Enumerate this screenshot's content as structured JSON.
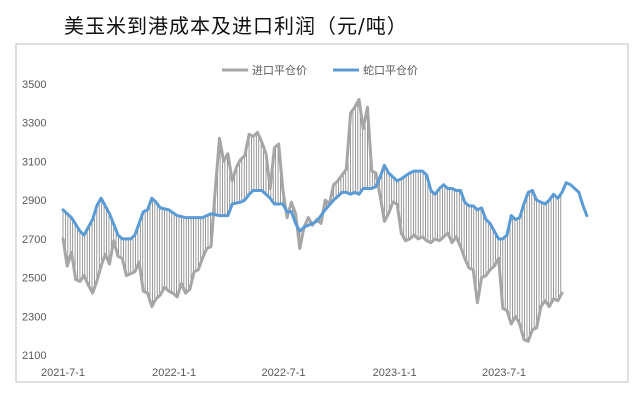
{
  "chart_data": {
    "type": "line",
    "title": "美玉米到港成本及进口利润（元/吨）",
    "xlabel": "",
    "ylabel": "",
    "ylim": [
      2100,
      3500
    ],
    "y_ticks": [
      2100,
      2300,
      2500,
      2700,
      2900,
      3100,
      3300,
      3500
    ],
    "x_tick_labels": [
      "2021-7-1",
      "2022-1-1",
      "2022-7-1",
      "2023-1-1",
      "2023-7-1"
    ],
    "x_range": [
      "2021-07-01",
      "2023-11-15"
    ],
    "legend_position": "top",
    "grid": false,
    "fill_between": "vertical hatch lines between the two series",
    "series": [
      {
        "name": "进口平仓价",
        "color": "#A6A6A6",
        "points": [
          [
            "2021-07-01",
            2700
          ],
          [
            "2021-07-08",
            2560
          ],
          [
            "2021-07-15",
            2630
          ],
          [
            "2021-07-22",
            2490
          ],
          [
            "2021-07-29",
            2480
          ],
          [
            "2021-08-05",
            2510
          ],
          [
            "2021-08-12",
            2460
          ],
          [
            "2021-08-19",
            2420
          ],
          [
            "2021-08-26",
            2480
          ],
          [
            "2021-09-02",
            2560
          ],
          [
            "2021-09-09",
            2620
          ],
          [
            "2021-09-16",
            2570
          ],
          [
            "2021-09-23",
            2690
          ],
          [
            "2021-09-30",
            2610
          ],
          [
            "2021-10-07",
            2600
          ],
          [
            "2021-10-14",
            2510
          ],
          [
            "2021-10-21",
            2520
          ],
          [
            "2021-10-28",
            2530
          ],
          [
            "2021-11-04",
            2580
          ],
          [
            "2021-11-11",
            2430
          ],
          [
            "2021-11-18",
            2420
          ],
          [
            "2021-11-25",
            2350
          ],
          [
            "2021-12-02",
            2390
          ],
          [
            "2021-12-09",
            2410
          ],
          [
            "2021-12-16",
            2450
          ],
          [
            "2021-12-23",
            2430
          ],
          [
            "2021-12-30",
            2420
          ],
          [
            "2022-01-06",
            2400
          ],
          [
            "2022-01-13",
            2470
          ],
          [
            "2022-01-20",
            2420
          ],
          [
            "2022-01-27",
            2440
          ],
          [
            "2022-02-03",
            2530
          ],
          [
            "2022-02-10",
            2540
          ],
          [
            "2022-02-17",
            2600
          ],
          [
            "2022-02-24",
            2650
          ],
          [
            "2022-03-03",
            2660
          ],
          [
            "2022-03-10",
            2950
          ],
          [
            "2022-03-17",
            3220
          ],
          [
            "2022-03-24",
            3100
          ],
          [
            "2022-03-31",
            3140
          ],
          [
            "2022-04-07",
            3000
          ],
          [
            "2022-04-14",
            3070
          ],
          [
            "2022-04-21",
            3110
          ],
          [
            "2022-04-28",
            3130
          ],
          [
            "2022-05-05",
            3240
          ],
          [
            "2022-05-12",
            3230
          ],
          [
            "2022-05-19",
            3250
          ],
          [
            "2022-05-26",
            3200
          ],
          [
            "2022-06-02",
            3140
          ],
          [
            "2022-06-09",
            2960
          ],
          [
            "2022-06-16",
            3170
          ],
          [
            "2022-06-23",
            3190
          ],
          [
            "2022-06-30",
            2950
          ],
          [
            "2022-07-07",
            2810
          ],
          [
            "2022-07-14",
            2890
          ],
          [
            "2022-07-21",
            2830
          ],
          [
            "2022-07-28",
            2650
          ],
          [
            "2022-08-04",
            2760
          ],
          [
            "2022-08-11",
            2810
          ],
          [
            "2022-08-18",
            2770
          ],
          [
            "2022-08-25",
            2800
          ],
          [
            "2022-09-01",
            2780
          ],
          [
            "2022-09-08",
            2900
          ],
          [
            "2022-09-15",
            2880
          ],
          [
            "2022-09-22",
            2980
          ],
          [
            "2022-09-29",
            3000
          ],
          [
            "2022-10-06",
            3030
          ],
          [
            "2022-10-13",
            3060
          ],
          [
            "2022-10-20",
            3350
          ],
          [
            "2022-10-27",
            3380
          ],
          [
            "2022-11-03",
            3420
          ],
          [
            "2022-11-10",
            3270
          ],
          [
            "2022-11-17",
            3380
          ],
          [
            "2022-11-24",
            3050
          ],
          [
            "2022-12-01",
            3040
          ],
          [
            "2022-12-08",
            2920
          ],
          [
            "2022-12-15",
            2790
          ],
          [
            "2022-12-22",
            2830
          ],
          [
            "2022-12-29",
            2890
          ],
          [
            "2023-01-05",
            2880
          ],
          [
            "2023-01-12",
            2730
          ],
          [
            "2023-01-19",
            2690
          ],
          [
            "2023-01-26",
            2700
          ],
          [
            "2023-02-02",
            2720
          ],
          [
            "2023-02-09",
            2700
          ],
          [
            "2023-02-16",
            2710
          ],
          [
            "2023-02-23",
            2690
          ],
          [
            "2023-03-02",
            2680
          ],
          [
            "2023-03-09",
            2700
          ],
          [
            "2023-03-16",
            2690
          ],
          [
            "2023-03-23",
            2710
          ],
          [
            "2023-03-30",
            2730
          ],
          [
            "2023-04-06",
            2680
          ],
          [
            "2023-04-13",
            2710
          ],
          [
            "2023-04-20",
            2660
          ],
          [
            "2023-04-27",
            2600
          ],
          [
            "2023-05-04",
            2550
          ],
          [
            "2023-05-11",
            2540
          ],
          [
            "2023-05-18",
            2370
          ],
          [
            "2023-05-25",
            2500
          ],
          [
            "2023-06-01",
            2510
          ],
          [
            "2023-06-08",
            2540
          ],
          [
            "2023-06-15",
            2560
          ],
          [
            "2023-06-22",
            2600
          ],
          [
            "2023-06-29",
            2340
          ],
          [
            "2023-07-06",
            2330
          ],
          [
            "2023-07-13",
            2260
          ],
          [
            "2023-07-20",
            2300
          ],
          [
            "2023-07-27",
            2260
          ],
          [
            "2023-08-03",
            2180
          ],
          [
            "2023-08-10",
            2170
          ],
          [
            "2023-08-17",
            2230
          ],
          [
            "2023-08-24",
            2240
          ],
          [
            "2023-08-31",
            2350
          ],
          [
            "2023-09-07",
            2380
          ],
          [
            "2023-09-14",
            2350
          ],
          [
            "2023-09-21",
            2390
          ],
          [
            "2023-09-28",
            2380
          ],
          [
            "2023-10-05",
            2420
          ]
        ]
      },
      {
        "name": "蛇口平仓价",
        "color": "#5B9BD5",
        "points": [
          [
            "2021-07-01",
            2850
          ],
          [
            "2021-07-15",
            2810
          ],
          [
            "2021-07-29",
            2740
          ],
          [
            "2021-08-05",
            2720
          ],
          [
            "2021-08-19",
            2800
          ],
          [
            "2021-08-26",
            2870
          ],
          [
            "2021-09-02",
            2910
          ],
          [
            "2021-09-16",
            2830
          ],
          [
            "2021-09-30",
            2720
          ],
          [
            "2021-10-07",
            2700
          ],
          [
            "2021-10-21",
            2700
          ],
          [
            "2021-10-28",
            2720
          ],
          [
            "2021-11-11",
            2840
          ],
          [
            "2021-11-18",
            2850
          ],
          [
            "2021-11-25",
            2910
          ],
          [
            "2021-12-02",
            2890
          ],
          [
            "2021-12-09",
            2860
          ],
          [
            "2021-12-23",
            2850
          ],
          [
            "2022-01-06",
            2820
          ],
          [
            "2022-01-20",
            2810
          ],
          [
            "2022-02-03",
            2810
          ],
          [
            "2022-02-17",
            2810
          ],
          [
            "2022-02-24",
            2820
          ],
          [
            "2022-03-03",
            2830
          ],
          [
            "2022-03-17",
            2820
          ],
          [
            "2022-03-31",
            2820
          ],
          [
            "2022-04-07",
            2880
          ],
          [
            "2022-04-21",
            2890
          ],
          [
            "2022-04-28",
            2900
          ],
          [
            "2022-05-05",
            2930
          ],
          [
            "2022-05-12",
            2950
          ],
          [
            "2022-05-26",
            2950
          ],
          [
            "2022-06-09",
            2910
          ],
          [
            "2022-06-16",
            2880
          ],
          [
            "2022-06-30",
            2880
          ],
          [
            "2022-07-07",
            2840
          ],
          [
            "2022-07-14",
            2840
          ],
          [
            "2022-07-21",
            2780
          ],
          [
            "2022-07-28",
            2740
          ],
          [
            "2022-08-04",
            2760
          ],
          [
            "2022-08-11",
            2770
          ],
          [
            "2022-08-25",
            2790
          ],
          [
            "2022-09-08",
            2850
          ],
          [
            "2022-09-22",
            2900
          ],
          [
            "2022-10-06",
            2940
          ],
          [
            "2022-10-13",
            2940
          ],
          [
            "2022-10-20",
            2930
          ],
          [
            "2022-10-27",
            2940
          ],
          [
            "2022-11-03",
            2930
          ],
          [
            "2022-11-10",
            2960
          ],
          [
            "2022-11-24",
            2960
          ],
          [
            "2022-12-01",
            2970
          ],
          [
            "2022-12-08",
            3020
          ],
          [
            "2022-12-15",
            3080
          ],
          [
            "2022-12-22",
            3040
          ],
          [
            "2022-12-29",
            3020
          ],
          [
            "2023-01-05",
            3000
          ],
          [
            "2023-01-12",
            3010
          ],
          [
            "2023-01-26",
            3040
          ],
          [
            "2023-02-02",
            3050
          ],
          [
            "2023-02-16",
            3050
          ],
          [
            "2023-02-23",
            3030
          ],
          [
            "2023-03-02",
            2950
          ],
          [
            "2023-03-09",
            2930
          ],
          [
            "2023-03-16",
            2960
          ],
          [
            "2023-03-23",
            2980
          ],
          [
            "2023-03-30",
            2960
          ],
          [
            "2023-04-06",
            2960
          ],
          [
            "2023-04-13",
            2950
          ],
          [
            "2023-04-20",
            2950
          ],
          [
            "2023-04-27",
            2890
          ],
          [
            "2023-05-04",
            2870
          ],
          [
            "2023-05-11",
            2870
          ],
          [
            "2023-05-18",
            2850
          ],
          [
            "2023-05-25",
            2860
          ],
          [
            "2023-06-01",
            2800
          ],
          [
            "2023-06-08",
            2780
          ],
          [
            "2023-06-15",
            2740
          ],
          [
            "2023-06-22",
            2700
          ],
          [
            "2023-06-29",
            2700
          ],
          [
            "2023-07-06",
            2720
          ],
          [
            "2023-07-13",
            2820
          ],
          [
            "2023-07-20",
            2800
          ],
          [
            "2023-07-27",
            2810
          ],
          [
            "2023-08-03",
            2880
          ],
          [
            "2023-08-10",
            2940
          ],
          [
            "2023-08-17",
            2950
          ],
          [
            "2023-08-24",
            2900
          ],
          [
            "2023-08-31",
            2890
          ],
          [
            "2023-09-07",
            2880
          ],
          [
            "2023-09-14",
            2900
          ],
          [
            "2023-09-21",
            2930
          ],
          [
            "2023-09-28",
            2910
          ],
          [
            "2023-10-05",
            2940
          ],
          [
            "2023-10-12",
            2990
          ],
          [
            "2023-10-19",
            2980
          ],
          [
            "2023-10-26",
            2960
          ],
          [
            "2023-11-02",
            2940
          ],
          [
            "2023-11-09",
            2870
          ],
          [
            "2023-11-15",
            2820
          ]
        ]
      }
    ]
  }
}
